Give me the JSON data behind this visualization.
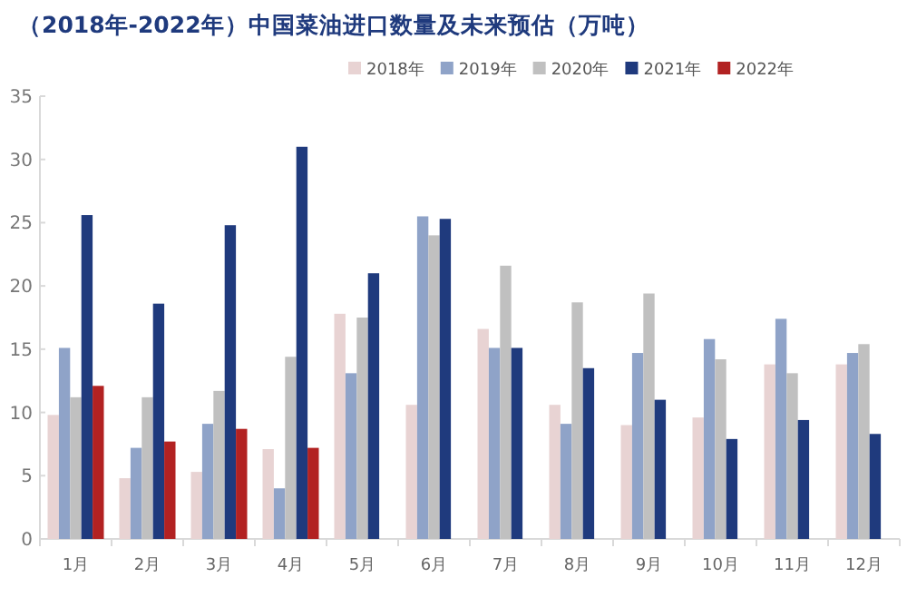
{
  "chart_data": {
    "type": "bar",
    "title": "（2018年-2022年）中国菜油进口数量及未来预估（万吨）",
    "categories": [
      "1月",
      "2月",
      "3月",
      "4月",
      "5月",
      "6月",
      "7月",
      "8月",
      "9月",
      "10月",
      "11月",
      "12月"
    ],
    "series": [
      {
        "name": "2018年",
        "color": "#e8d3d3",
        "values": [
          9.8,
          4.8,
          5.3,
          7.1,
          17.8,
          10.6,
          16.6,
          10.6,
          9.0,
          9.6,
          13.8,
          13.8
        ]
      },
      {
        "name": "2019年",
        "color": "#8fa3c8",
        "values": [
          15.1,
          7.2,
          9.1,
          4.0,
          13.1,
          25.5,
          15.1,
          9.1,
          14.7,
          15.8,
          17.4,
          14.7
        ]
      },
      {
        "name": "2020年",
        "color": "#c0c0c0",
        "values": [
          11.2,
          11.2,
          11.7,
          14.4,
          17.5,
          24.0,
          21.6,
          18.7,
          19.4,
          14.2,
          13.1,
          15.4
        ]
      },
      {
        "name": "2021年",
        "color": "#1f3a7d",
        "values": [
          25.6,
          18.6,
          24.8,
          31.0,
          21.0,
          25.3,
          15.1,
          13.5,
          11.0,
          7.9,
          9.4,
          8.3
        ]
      },
      {
        "name": "2022年",
        "color": "#b22222",
        "values": [
          12.1,
          7.7,
          8.7,
          7.2,
          null,
          null,
          null,
          null,
          null,
          null,
          null,
          null
        ]
      }
    ],
    "ylim": [
      0,
      35
    ],
    "yticks": [
      0,
      5,
      10,
      15,
      20,
      25,
      30,
      35
    ],
    "grid": false,
    "legend": "top right"
  }
}
